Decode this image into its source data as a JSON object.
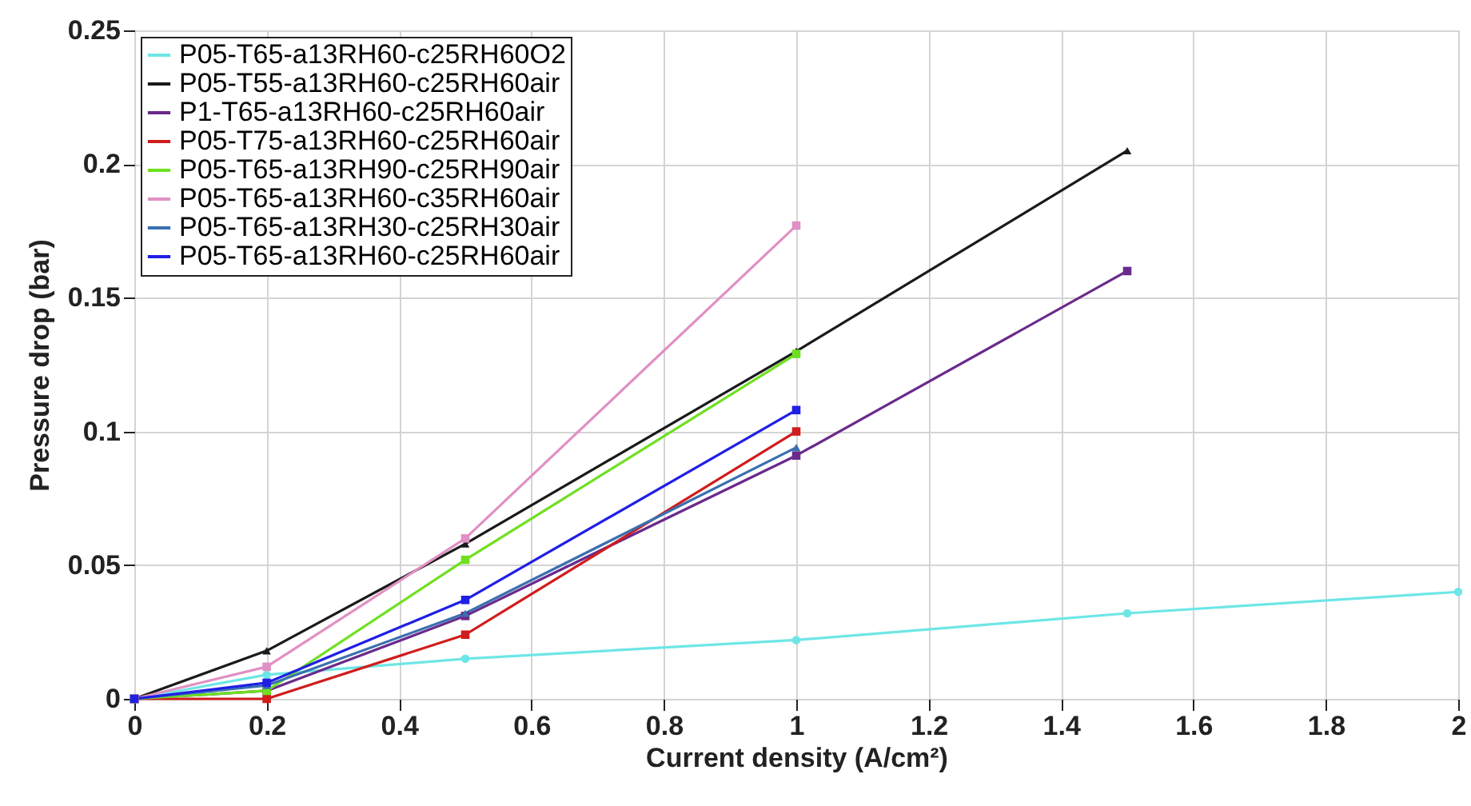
{
  "chart_data": {
    "type": "line",
    "xlabel": "Current density (A/cm²)",
    "ylabel": "Pressure drop (bar)",
    "xlim": [
      0,
      2
    ],
    "xticks": [
      0,
      0.2,
      0.4,
      0.6,
      0.8,
      1,
      1.2,
      1.4,
      1.6,
      1.8,
      2
    ],
    "ylim": [
      0,
      0.25
    ],
    "yticks": [
      0,
      0.05,
      0.1,
      0.15,
      0.2,
      0.25
    ],
    "grid": true,
    "legend": "top left",
    "line_style": "solid",
    "series": [
      {
        "name": "P05-T65-a13RH60-c25RH60O2",
        "color": "#6ee6e6",
        "marker": "circle",
        "x": [
          0,
          0.2,
          0.5,
          1,
          1.5,
          2
        ],
        "values": [
          0,
          0.009,
          0.015,
          0.022,
          0.032,
          0.04
        ]
      },
      {
        "name": "P05-T55-a13RH60-c25RH60air",
        "color": "#1a1a1a",
        "marker": "triangle",
        "x": [
          0,
          0.2,
          0.5,
          1,
          1.5
        ],
        "values": [
          0,
          0.018,
          0.058,
          0.13,
          0.205
        ]
      },
      {
        "name": "P1-T65-a13RH60-c25RH60air",
        "color": "#6a2a8c",
        "marker": "square",
        "x": [
          0,
          0.2,
          0.5,
          1,
          1.5
        ],
        "values": [
          0,
          0.003,
          0.031,
          0.091,
          0.16
        ]
      },
      {
        "name": "P05-T75-a13RH60-c25RH60air",
        "color": "#d01c1c",
        "marker": "square",
        "x": [
          0,
          0.2,
          0.5,
          1
        ],
        "values": [
          0,
          0,
          0.024,
          0.1
        ]
      },
      {
        "name": "P05-T65-a13RH90-c25RH90air",
        "color": "#6fe020",
        "marker": "square",
        "x": [
          0,
          0.2,
          0.5,
          1
        ],
        "values": [
          0,
          0.003,
          0.052,
          0.129
        ]
      },
      {
        "name": "P05-T65-a13RH60-c35RH60air",
        "color": "#e090c4",
        "marker": "square",
        "x": [
          0,
          0.2,
          0.5,
          1
        ],
        "values": [
          0,
          0.012,
          0.06,
          0.177
        ]
      },
      {
        "name": "P05-T65-a13RH30-c25RH30air",
        "color": "#3a6fb0",
        "marker": "triangle",
        "x": [
          0,
          0.2,
          0.5,
          1
        ],
        "values": [
          0,
          0.005,
          0.032,
          0.094
        ]
      },
      {
        "name": "P05-T65-a13RH60-c25RH60air",
        "color": "#1f1fe6",
        "marker": "square",
        "x": [
          0,
          0.2,
          0.5,
          1
        ],
        "values": [
          0,
          0.006,
          0.037,
          0.108
        ]
      }
    ]
  }
}
